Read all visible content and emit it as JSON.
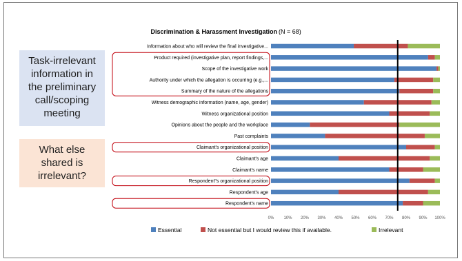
{
  "slide": {
    "callout_task": [
      "Task-irrelevant",
      "information in",
      "the preliminary",
      "call/scoping",
      "meeting"
    ],
    "callout_else": [
      "What else",
      "shared is",
      "irrelevant?"
    ]
  },
  "chart_data": {
    "type": "bar",
    "orientation": "horizontal",
    "stacked": "percent",
    "title": "Discrimination & Harassment Investigation",
    "subtitle": "(N = 68)",
    "categories": [
      "Information about who will review the final investigative...",
      "Product required (investigative plan, report findings,...",
      "Scope of the investigative work",
      "Authority under which the allegation is occurring (e.g.,...",
      "Summary of the nature of the allegations",
      "Witness demographic information (name, age, gender)",
      "Witness organizational position",
      "Opinions about the people and the workplace",
      "Past complaints",
      "Claimant's organizational position",
      "Claimant's age",
      "Claimant's name",
      "Respondent\"s organizational position",
      "Respondent's age",
      "Respondent's name"
    ],
    "highlighted_categories": [
      1,
      2,
      3,
      4,
      9,
      12,
      14
    ],
    "series": [
      {
        "name": "Essential",
        "values": [
          49,
          93,
          98,
          73,
          76,
          55,
          70,
          23,
          32,
          80,
          40,
          70,
          82,
          40,
          78
        ]
      },
      {
        "name": "Not essential but I would review this if available.",
        "values": [
          32,
          4,
          1,
          23,
          20,
          40,
          24,
          53,
          59,
          17,
          54,
          20,
          15,
          53,
          12
        ]
      },
      {
        "name": "Irrelevant",
        "values": [
          19,
          3,
          1,
          4,
          4,
          5,
          6,
          24,
          9,
          3,
          6,
          10,
          3,
          7,
          10
        ]
      }
    ],
    "colors": [
      "#4f81bd",
      "#c0504d",
      "#9bbb59"
    ],
    "xlim": [
      0,
      100
    ],
    "xticks": [
      "0%",
      "10%",
      "20%",
      "30%",
      "40%",
      "50%",
      "60%",
      "70%",
      "80%",
      "90%",
      "100%"
    ],
    "reference_line": 75,
    "legend_position": "bottom"
  }
}
